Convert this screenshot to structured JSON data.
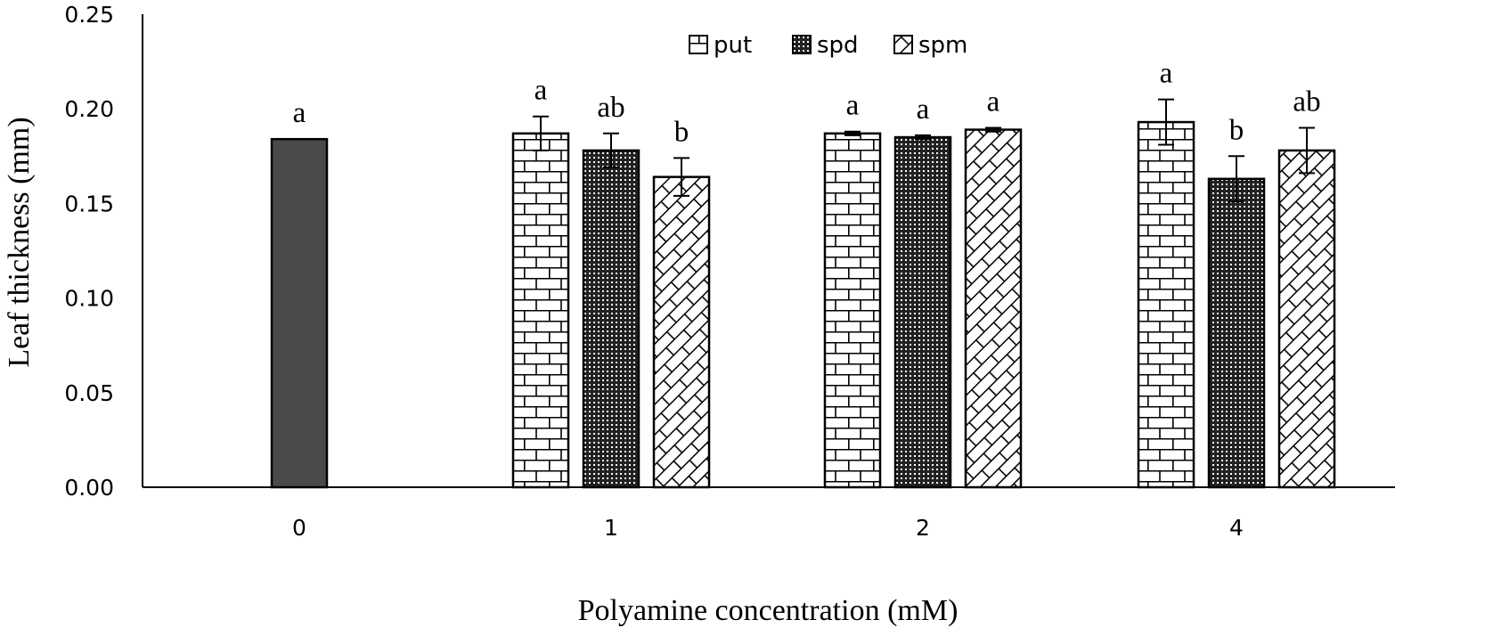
{
  "chart_data": {
    "type": "bar",
    "xlabel": "Polyamine concentration (mM)",
    "ylabel": "Leaf thickness (mm)",
    "ylim": [
      0,
      0.25
    ],
    "yticks": [
      "0.00",
      "0.05",
      "0.10",
      "0.15",
      "0.20",
      "0.25"
    ],
    "grid": false,
    "legend_position": "top",
    "legend": [
      {
        "name": "put",
        "pattern": "brick"
      },
      {
        "name": "spd",
        "pattern": "dots"
      },
      {
        "name": "spm",
        "pattern": "diagonal-brick"
      }
    ],
    "groups": [
      {
        "label": "0",
        "bars": [
          {
            "series": "",
            "pattern": "solid",
            "value": 0.184,
            "error": 0.0,
            "sig": "a"
          }
        ]
      },
      {
        "label": "1",
        "bars": [
          {
            "series": "put",
            "pattern": "brick",
            "value": 0.187,
            "error": 0.009,
            "sig": "a"
          },
          {
            "series": "spd",
            "pattern": "dots",
            "value": 0.178,
            "error": 0.009,
            "sig": "ab"
          },
          {
            "series": "spm",
            "pattern": "diagonal-brick",
            "value": 0.164,
            "error": 0.01,
            "sig": "b"
          }
        ]
      },
      {
        "label": "2",
        "bars": [
          {
            "series": "put",
            "pattern": "brick",
            "value": 0.187,
            "error": 0.001,
            "sig": "a"
          },
          {
            "series": "spd",
            "pattern": "dots",
            "value": 0.185,
            "error": 0.001,
            "sig": "a"
          },
          {
            "series": "spm",
            "pattern": "diagonal-brick",
            "value": 0.189,
            "error": 0.001,
            "sig": "a"
          }
        ]
      },
      {
        "label": "4",
        "bars": [
          {
            "series": "put",
            "pattern": "brick",
            "value": 0.193,
            "error": 0.012,
            "sig": "a"
          },
          {
            "series": "spd",
            "pattern": "dots",
            "value": 0.163,
            "error": 0.012,
            "sig": "b"
          },
          {
            "series": "spm",
            "pattern": "diagonal-brick",
            "value": 0.178,
            "error": 0.012,
            "sig": "ab"
          }
        ]
      }
    ],
    "colors": {
      "control": "#4a4a4a",
      "ink": "#000000",
      "fill": "#ffffff"
    }
  }
}
